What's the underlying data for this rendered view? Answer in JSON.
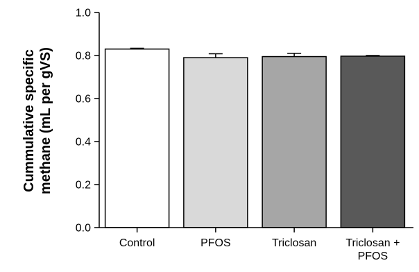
{
  "chart_data": {
    "type": "bar",
    "categories": [
      [
        "Control"
      ],
      [
        "PFOS"
      ],
      [
        "Triclosan"
      ],
      [
        "Triclosan +",
        "PFOS"
      ]
    ],
    "values": [
      0.83,
      0.79,
      0.795,
      0.797
    ],
    "errors": [
      0.004,
      0.018,
      0.015,
      0.003
    ],
    "colors": [
      "#ffffff",
      "#d9d9d9",
      "#a6a6a6",
      "#595959"
    ],
    "ylabel": [
      "Cummulative specific",
      "methane (mL per gVS)"
    ],
    "ylim": [
      0,
      1.0
    ],
    "yticks": [
      "0.0",
      "0.2",
      "0.4",
      "0.6",
      "0.8",
      "1.0"
    ],
    "grid": false
  }
}
